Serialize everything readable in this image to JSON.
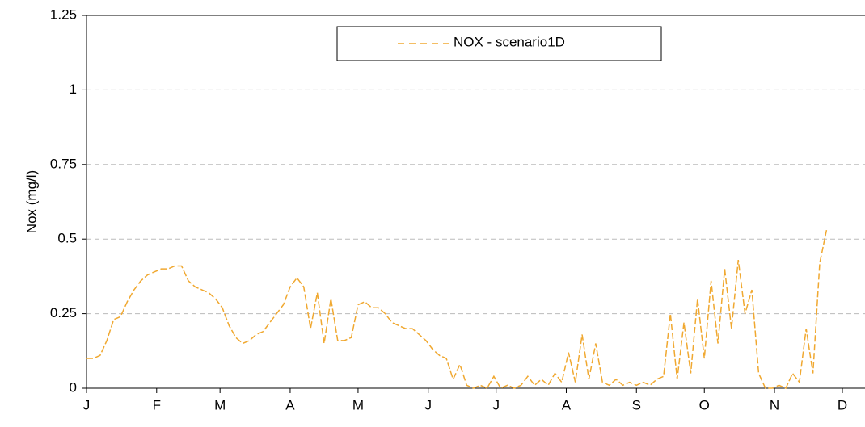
{
  "chart_data": {
    "type": "line",
    "ylabel": "Nox (mg/l)",
    "xlim": [
      0,
      344
    ],
    "xticks": [
      {
        "value": 0,
        "label": "J"
      },
      {
        "value": 31,
        "label": "F"
      },
      {
        "value": 59,
        "label": "M"
      },
      {
        "value": 90,
        "label": "A"
      },
      {
        "value": 120,
        "label": "M"
      },
      {
        "value": 151,
        "label": "J"
      },
      {
        "value": 181,
        "label": "J"
      },
      {
        "value": 212,
        "label": "A"
      },
      {
        "value": 243,
        "label": "S"
      },
      {
        "value": 273,
        "label": "O"
      },
      {
        "value": 304,
        "label": "N"
      },
      {
        "value": 334,
        "label": "D"
      }
    ],
    "ylim": [
      0,
      1.25
    ],
    "yticks": [
      0,
      0.25,
      0.5,
      0.75,
      1,
      1.25
    ],
    "grid": true,
    "legend": "top",
    "x": [
      0,
      3,
      6,
      9,
      12,
      15,
      18,
      21,
      24,
      27,
      30,
      33,
      36,
      39,
      42,
      45,
      48,
      51,
      54,
      57,
      60,
      63,
      66,
      69,
      72,
      75,
      78,
      81,
      84,
      87,
      90,
      93,
      96,
      99,
      102,
      105,
      108,
      111,
      114,
      117,
      120,
      123,
      126,
      129,
      132,
      135,
      138,
      141,
      144,
      147,
      150,
      153,
      156,
      159,
      162,
      165,
      168,
      171,
      174,
      177,
      180,
      183,
      186,
      189,
      192,
      195,
      198,
      201,
      204,
      207,
      210,
      213,
      216,
      219,
      222,
      225,
      228,
      231,
      234,
      237,
      240,
      243,
      246,
      249,
      252,
      255,
      258,
      261,
      264,
      267,
      270,
      273,
      276,
      279,
      282,
      285,
      288,
      291,
      294,
      297,
      300,
      303,
      306,
      309,
      312,
      315,
      318,
      321,
      324,
      327
    ],
    "series": [
      {
        "name": "NOX - scenario1D",
        "color": "#f0a830",
        "values": [
          0.1,
          0.1,
          0.11,
          0.16,
          0.23,
          0.24,
          0.29,
          0.33,
          0.36,
          0.38,
          0.39,
          0.4,
          0.4,
          0.41,
          0.41,
          0.36,
          0.34,
          0.33,
          0.32,
          0.3,
          0.27,
          0.21,
          0.17,
          0.15,
          0.16,
          0.18,
          0.19,
          0.22,
          0.25,
          0.28,
          0.34,
          0.37,
          0.34,
          0.2,
          0.32,
          0.15,
          0.3,
          0.16,
          0.16,
          0.17,
          0.28,
          0.29,
          0.27,
          0.27,
          0.25,
          0.22,
          0.21,
          0.2,
          0.2,
          0.18,
          0.16,
          0.13,
          0.11,
          0.1,
          0.03,
          0.08,
          0.01,
          0.0,
          0.01,
          0.0,
          0.04,
          0.0,
          0.01,
          0.0,
          0.01,
          0.04,
          0.01,
          0.03,
          0.01,
          0.05,
          0.02,
          0.12,
          0.02,
          0.18,
          0.03,
          0.15,
          0.02,
          0.01,
          0.03,
          0.01,
          0.02,
          0.01,
          0.02,
          0.01,
          0.03,
          0.04,
          0.25,
          0.03,
          0.22,
          0.05,
          0.3,
          0.1,
          0.36,
          0.15,
          0.4,
          0.2,
          0.43,
          0.25,
          0.33,
          0.05,
          0.0,
          0.0,
          0.01,
          0.0,
          0.05,
          0.02,
          0.2,
          0.05,
          0.42,
          0.53
        ]
      }
    ]
  }
}
